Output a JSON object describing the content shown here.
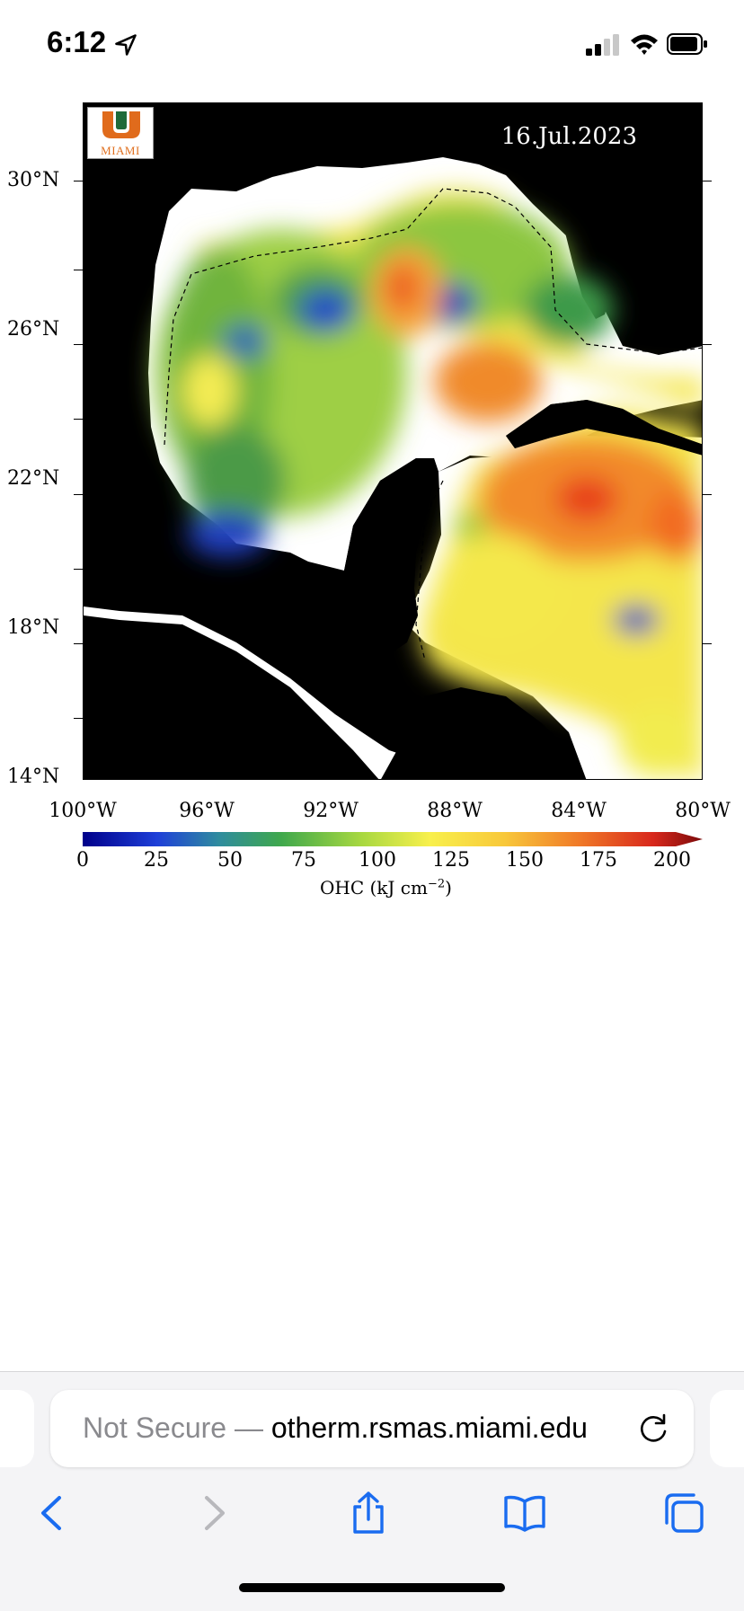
{
  "status_bar": {
    "time": "6:12",
    "icons": [
      "location-arrow-icon",
      "signal-icon",
      "wifi-icon",
      "battery-icon"
    ]
  },
  "map": {
    "date": "16.Jul.2023",
    "logo_text": "MIAMI",
    "lat_labels": [
      "30°N",
      "26°N",
      "22°N",
      "18°N",
      "14°N"
    ],
    "lon_labels": [
      "100°W",
      "96°W",
      "92°W",
      "88°W",
      "84°W",
      "80°W"
    ],
    "colorbar": {
      "labels": [
        "0",
        "25",
        "50",
        "75",
        "100",
        "125",
        "150",
        "175",
        "200"
      ],
      "unit_label": "OHC (kJ cm",
      "unit_exponent": "−2",
      "unit_close": ")",
      "range": [
        0,
        200
      ]
    },
    "colors": {
      "land": "#000000",
      "shelf": "#ffffff",
      "low": "#1030c0",
      "mid": "#a8d840",
      "high": "#ff3010"
    }
  },
  "browser": {
    "address_prefix": "Not Secure — ",
    "address_host": "otherm.rsmas.miami.edu",
    "toolbar": [
      "back-icon",
      "forward-icon",
      "share-icon",
      "bookmarks-icon",
      "tabs-icon"
    ]
  }
}
